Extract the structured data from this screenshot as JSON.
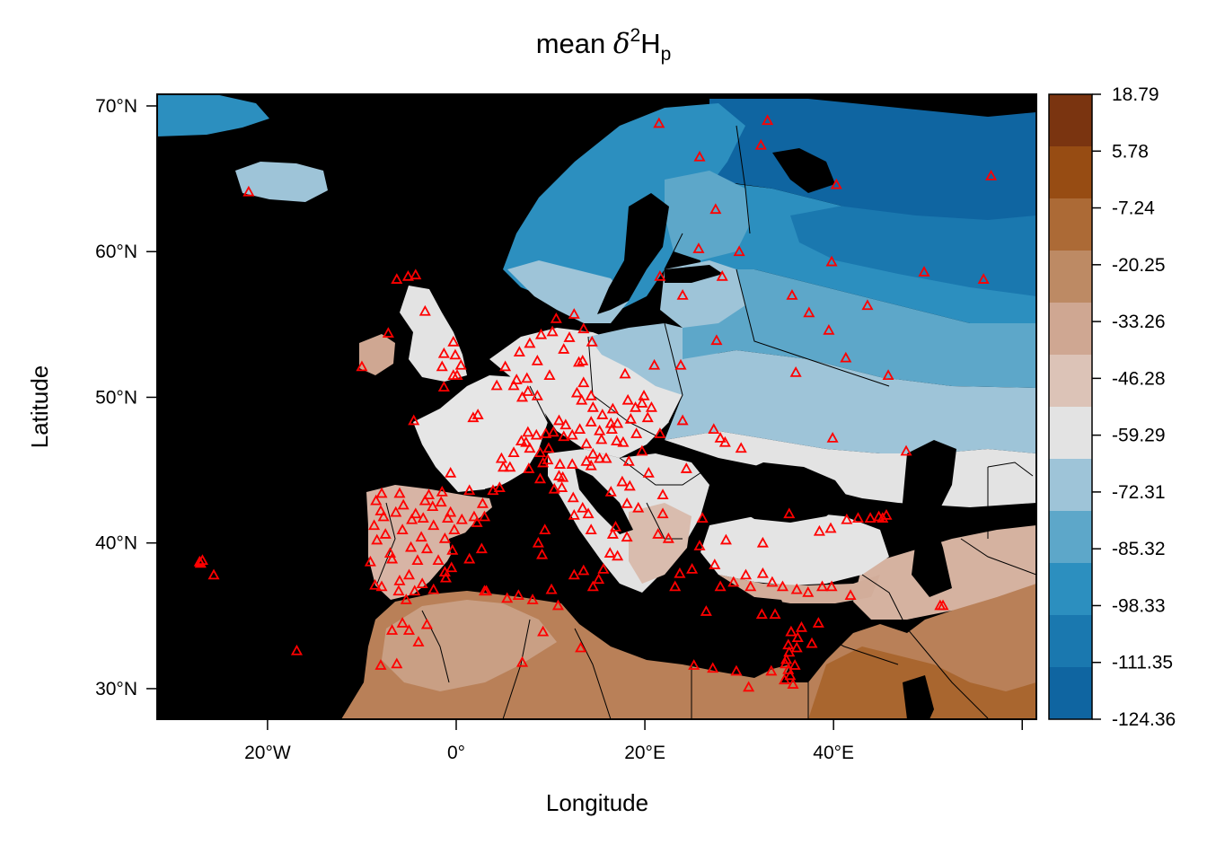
{
  "title": {
    "prefix": "mean ",
    "symbol": "δ",
    "superscript": "2",
    "base": "H",
    "subscript": "p"
  },
  "axes": {
    "xlabel": "Longitude",
    "ylabel": "Latitude",
    "x_ticks": [
      {
        "value": -20,
        "label": "20°W"
      },
      {
        "value": 0,
        "label": "0°"
      },
      {
        "value": 20,
        "label": "20°E"
      },
      {
        "value": 40,
        "label": "40°E"
      },
      {
        "value": 60,
        "label": ""
      }
    ],
    "y_ticks": [
      {
        "value": 30,
        "label": "30°N"
      },
      {
        "value": 40,
        "label": "40°N"
      },
      {
        "value": 50,
        "label": "50°N"
      },
      {
        "value": 60,
        "label": "60°N"
      },
      {
        "value": 70,
        "label": "70°N"
      }
    ],
    "xlim": [
      -31.7,
      61.5
    ],
    "ylim": [
      27.9,
      70.8
    ]
  },
  "legend": {
    "labels": [
      "18.79",
      "5.78",
      "-7.24",
      "-20.25",
      "-33.26",
      "-46.28",
      "-59.29",
      "-72.31",
      "-85.32",
      "-98.33",
      "-111.35",
      "-124.36"
    ],
    "colors_top_to_bottom": [
      "#7a3410",
      "#974c13",
      "#ac6a36",
      "#bd8a64",
      "#cfa792",
      "#dcc3b7",
      "#e3e3e3",
      "#9ec4d8",
      "#5da7c9",
      "#2c8fbf",
      "#1a78af",
      "#0f65a1"
    ]
  },
  "colors": {
    "sea": "#000000",
    "station_marker": "#ff0000",
    "border_lines": "#000000"
  },
  "stations_lonlat": [
    [
      21.5,
      68.8
    ],
    [
      33,
      69
    ],
    [
      25.8,
      66.5
    ],
    [
      32.3,
      67.3
    ],
    [
      40.3,
      64.6
    ],
    [
      56.7,
      65.2
    ],
    [
      27.5,
      62.9
    ],
    [
      30,
      60
    ],
    [
      25.7,
      60.2
    ],
    [
      39.8,
      59.3
    ],
    [
      49.6,
      58.6
    ],
    [
      55.9,
      58.1
    ],
    [
      21.6,
      58.3
    ],
    [
      28.2,
      58.3
    ],
    [
      24,
      57
    ],
    [
      35.6,
      57
    ],
    [
      37.4,
      55.8
    ],
    [
      43.6,
      56.3
    ],
    [
      39.5,
      54.6
    ],
    [
      27.6,
      53.9
    ],
    [
      41.3,
      52.7
    ],
    [
      36,
      51.7
    ],
    [
      23.8,
      52.2
    ],
    [
      45.8,
      51.5
    ],
    [
      24,
      48.4
    ],
    [
      27.3,
      47.8
    ],
    [
      28,
      47.2
    ],
    [
      28.5,
      46.9
    ],
    [
      30.2,
      46.5
    ],
    [
      39.9,
      47.2
    ],
    [
      47.7,
      46.3
    ],
    [
      24.4,
      45.1
    ],
    [
      21.9,
      43.3
    ],
    [
      26.1,
      41.7
    ],
    [
      35.3,
      42
    ],
    [
      39.7,
      41
    ],
    [
      38.5,
      40.8
    ],
    [
      43.9,
      41.7
    ],
    [
      45.2,
      41.7
    ],
    [
      41.4,
      41.6
    ],
    [
      42.6,
      41.7
    ],
    [
      45.6,
      41.9
    ],
    [
      44.8,
      41.8
    ],
    [
      32.5,
      40
    ],
    [
      28.6,
      40.2
    ],
    [
      22.5,
      40.3
    ],
    [
      21.4,
      40.6
    ],
    [
      25.8,
      39.8
    ],
    [
      25,
      38.2
    ],
    [
      23.7,
      37.9
    ],
    [
      27.4,
      38.5
    ],
    [
      23.2,
      37
    ],
    [
      30.7,
      37.8
    ],
    [
      32.5,
      37.9
    ],
    [
      28,
      37
    ],
    [
      29.4,
      37.3
    ],
    [
      31.2,
      37
    ],
    [
      33.5,
      37.3
    ],
    [
      34.6,
      37
    ],
    [
      36.1,
      36.8
    ],
    [
      37.3,
      36.6
    ],
    [
      38.8,
      37
    ],
    [
      41.8,
      36.4
    ],
    [
      36.6,
      34.2
    ],
    [
      36.2,
      33.5
    ],
    [
      35.5,
      33.9
    ],
    [
      35.2,
      33
    ],
    [
      35.3,
      32.5
    ],
    [
      35,
      32
    ],
    [
      34.9,
      31.7
    ],
    [
      35.2,
      31.3
    ],
    [
      35.9,
      31.6
    ],
    [
      35.4,
      30.9
    ],
    [
      34.8,
      30.6
    ],
    [
      35.7,
      30.3
    ],
    [
      36.1,
      32.8
    ],
    [
      37.7,
      33.1
    ],
    [
      38.4,
      34.5
    ],
    [
      39.8,
      37
    ],
    [
      26.5,
      35.3
    ],
    [
      25.2,
      31.6
    ],
    [
      27.2,
      31.4
    ],
    [
      29.7,
      31.2
    ],
    [
      31,
      30.1
    ],
    [
      32.4,
      35.1
    ],
    [
      33.8,
      35.1
    ],
    [
      33.4,
      31.2
    ],
    [
      51.3,
      35.7
    ],
    [
      51.6,
      35.7
    ],
    [
      -10,
      52.1
    ],
    [
      -7.2,
      54.4
    ],
    [
      -5.1,
      58.3
    ],
    [
      -4.3,
      58.4
    ],
    [
      -6.3,
      58.1
    ],
    [
      -3.3,
      55.9
    ],
    [
      -1.3,
      53
    ],
    [
      -0.3,
      53.8
    ],
    [
      -1.5,
      52.1
    ],
    [
      0.1,
      51.5
    ],
    [
      0.5,
      52.2
    ],
    [
      -0.3,
      51.5
    ],
    [
      -1.3,
      50.7
    ],
    [
      -0.1,
      52.9
    ],
    [
      -4.5,
      48.4
    ],
    [
      1.8,
      48.6
    ],
    [
      2.3,
      48.8
    ],
    [
      4.3,
      50.8
    ],
    [
      5.2,
      52.1
    ],
    [
      6.7,
      53.1
    ],
    [
      7.8,
      53.7
    ],
    [
      9,
      54.3
    ],
    [
      10.6,
      55.4
    ],
    [
      12.5,
      55.7
    ],
    [
      10.2,
      54.5
    ],
    [
      12,
      54.1
    ],
    [
      13.5,
      54.7
    ],
    [
      14.4,
      53.8
    ],
    [
      6.1,
      50.8
    ],
    [
      6.4,
      51.2
    ],
    [
      7.5,
      51.3
    ],
    [
      9.9,
      51.5
    ],
    [
      11.4,
      53.3
    ],
    [
      8.6,
      52.5
    ],
    [
      13,
      52.4
    ],
    [
      13.4,
      52.5
    ],
    [
      7,
      50
    ],
    [
      7.6,
      50.4
    ],
    [
      8.6,
      50.1
    ],
    [
      10.9,
      48.4
    ],
    [
      11.6,
      48.1
    ],
    [
      12.8,
      50.3
    ],
    [
      14.3,
      50.1
    ],
    [
      13.5,
      51
    ],
    [
      16.6,
      49.2
    ],
    [
      18.2,
      49.8
    ],
    [
      19.9,
      50.1
    ],
    [
      19,
      49.3
    ],
    [
      20.7,
      49.3
    ],
    [
      20.3,
      48.6
    ],
    [
      17.1,
      48.2
    ],
    [
      16.4,
      48.2
    ],
    [
      15.4,
      47.1
    ],
    [
      14.3,
      48.3
    ],
    [
      13.1,
      47.8
    ],
    [
      12.3,
      47.4
    ],
    [
      11.4,
      47.3
    ],
    [
      10.3,
      47.6
    ],
    [
      9.5,
      47.5
    ],
    [
      8.5,
      47.4
    ],
    [
      7.6,
      47.6
    ],
    [
      6.9,
      47
    ],
    [
      7.4,
      46.9
    ],
    [
      6.1,
      46.2
    ],
    [
      7.8,
      46.5
    ],
    [
      8.9,
      46.2
    ],
    [
      9.8,
      46.5
    ],
    [
      5,
      45.2
    ],
    [
      5.7,
      45.2
    ],
    [
      4.6,
      43.8
    ],
    [
      3.9,
      43.6
    ],
    [
      4.8,
      45.8
    ],
    [
      1.4,
      43.6
    ],
    [
      -0.6,
      44.8
    ],
    [
      -1.5,
      43.5
    ],
    [
      2.8,
      42.7
    ],
    [
      3,
      41.8
    ],
    [
      2.2,
      41.4
    ],
    [
      0.6,
      41.6
    ],
    [
      -0.9,
      41.7
    ],
    [
      -3.7,
      40.4
    ],
    [
      -4.7,
      41.6
    ],
    [
      -5.6,
      42.6
    ],
    [
      -8.5,
      42.9
    ],
    [
      -7.9,
      43.4
    ],
    [
      -2.9,
      43.3
    ],
    [
      -6,
      43.4
    ],
    [
      -3.3,
      42.9
    ],
    [
      -2.5,
      42.5
    ],
    [
      -8.7,
      41.2
    ],
    [
      -8.4,
      40.2
    ],
    [
      -7.5,
      40.6
    ],
    [
      -9.1,
      38.7
    ],
    [
      -7.9,
      37
    ],
    [
      -8.6,
      37.1
    ],
    [
      -6,
      37.4
    ],
    [
      -5,
      37.8
    ],
    [
      -3.6,
      37.2
    ],
    [
      -4.4,
      36.7
    ],
    [
      -6.1,
      36.7
    ],
    [
      -5.3,
      36.1
    ],
    [
      -0.5,
      38.3
    ],
    [
      -1.1,
      37.6
    ],
    [
      -0.4,
      39.5
    ],
    [
      1.4,
      38.9
    ],
    [
      2.7,
      39.6
    ],
    [
      -6.8,
      38.9
    ],
    [
      -3.1,
      39.6
    ],
    [
      -2.4,
      36.8
    ],
    [
      -8,
      42.2
    ],
    [
      -6.4,
      42.1
    ],
    [
      -3.5,
      41.7
    ],
    [
      -5.7,
      40.9
    ],
    [
      -4.3,
      42
    ],
    [
      -7,
      39.3
    ],
    [
      -4.1,
      38.8
    ],
    [
      -2.4,
      41.2
    ],
    [
      -1.9,
      38.8
    ],
    [
      -4.8,
      39.7
    ],
    [
      -1.2,
      40.3
    ],
    [
      -0.2,
      40.9
    ],
    [
      1.9,
      41.8
    ],
    [
      -0.6,
      42.1
    ],
    [
      -1.6,
      42.8
    ],
    [
      -1.2,
      38
    ],
    [
      -7.7,
      41.8
    ],
    [
      -5,
      34
    ],
    [
      -6.8,
      34
    ],
    [
      -4,
      33.2
    ],
    [
      -6.3,
      31.7
    ],
    [
      -5.7,
      34.5
    ],
    [
      -3.1,
      34.4
    ],
    [
      -8,
      31.6
    ],
    [
      3,
      36.7
    ],
    [
      5.4,
      36.2
    ],
    [
      3.2,
      36.7
    ],
    [
      10.1,
      36.8
    ],
    [
      8.1,
      36.1
    ],
    [
      6.6,
      36.4
    ],
    [
      9.2,
      33.9
    ],
    [
      10.8,
      35.7
    ],
    [
      7,
      31.8
    ],
    [
      13.2,
      32.8
    ],
    [
      15.1,
      37.5
    ],
    [
      14.5,
      37
    ],
    [
      13.5,
      38.1
    ],
    [
      12.5,
      37.8
    ],
    [
      15.6,
      38.2
    ],
    [
      16.3,
      39.3
    ],
    [
      16.6,
      40.6
    ],
    [
      17.1,
      39.1
    ],
    [
      18.1,
      40.4
    ],
    [
      16.9,
      41.1
    ],
    [
      14.3,
      40.9
    ],
    [
      14,
      42
    ],
    [
      12.5,
      41.9
    ],
    [
      13.4,
      42.4
    ],
    [
      11.2,
      43.8
    ],
    [
      12.4,
      43.1
    ],
    [
      10.4,
      43.7
    ],
    [
      10.9,
      44.6
    ],
    [
      11.3,
      44.5
    ],
    [
      9.2,
      45.5
    ],
    [
      8.9,
      44.4
    ],
    [
      7.7,
      45.1
    ],
    [
      9.7,
      45.7
    ],
    [
      11,
      45.4
    ],
    [
      12.3,
      45.4
    ],
    [
      13.8,
      45.6
    ],
    [
      14.5,
      46.1
    ],
    [
      14.3,
      45.3
    ],
    [
      15.2,
      45.8
    ],
    [
      15.9,
      45.8
    ],
    [
      16.4,
      43.5
    ],
    [
      17.6,
      44.2
    ],
    [
      18.4,
      43.9
    ],
    [
      18.1,
      42.7
    ],
    [
      19.3,
      42.4
    ],
    [
      20.4,
      44.8
    ],
    [
      21.9,
      42
    ],
    [
      8.7,
      40
    ],
    [
      9.1,
      39.2
    ],
    [
      9.4,
      40.9
    ],
    [
      18.3,
      45.6
    ],
    [
      19.1,
      47.5
    ],
    [
      21.6,
      47.5
    ],
    [
      19.7,
      46.3
    ],
    [
      17.7,
      46.9
    ],
    [
      19.7,
      49.6
    ],
    [
      18.5,
      48.5
    ],
    [
      17,
      47
    ],
    [
      15.2,
      47.7
    ],
    [
      13.8,
      46.8
    ],
    [
      16.5,
      47.8
    ],
    [
      15.5,
      48.8
    ],
    [
      13.3,
      49.8
    ],
    [
      14.5,
      49.3
    ],
    [
      21,
      52.2
    ],
    [
      17.9,
      51.6
    ],
    [
      -27.2,
      38.7
    ],
    [
      -26.9,
      38.8
    ],
    [
      -27.1,
      38.6
    ],
    [
      -25.7,
      37.8
    ],
    [
      -16.9,
      32.6
    ],
    [
      -22,
      64.1
    ]
  ]
}
